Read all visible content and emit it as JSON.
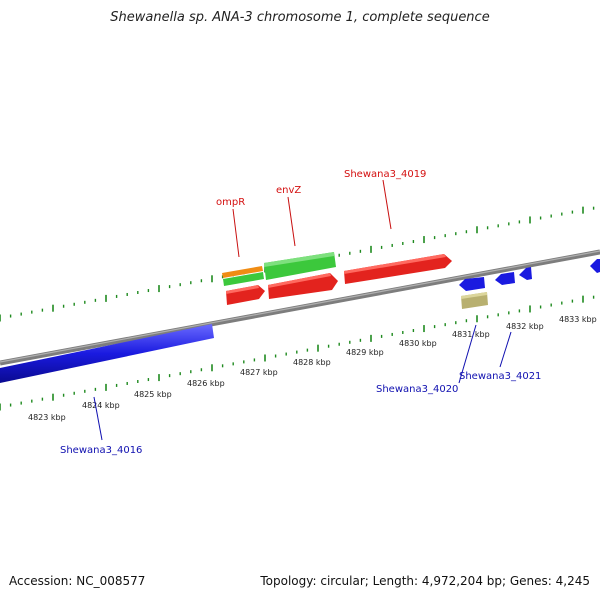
{
  "title": "Shewanella sp. ANA-3 chromosome 1, complete sequence",
  "footer": {
    "accession": "Accession: NC_008577",
    "topology": "Topology: circular; Length: 4,972,204 bp; Genes: 4,245"
  },
  "colors": {
    "backbone": "#8a8a8a",
    "tick": "#1f8a1f",
    "red": "#e3231e",
    "green": "#3cc83c",
    "orange": "#f08c14",
    "blue": "#1a1ae0",
    "khaki": "#b8b070",
    "forward_label": "#d41010",
    "reverse_label": "#1010b0"
  },
  "scale": {
    "ticks": [
      {
        "label": "4823 kbp"
      },
      {
        "label": "4824 kbp"
      },
      {
        "label": "4825 kbp"
      },
      {
        "label": "4826 kbp"
      },
      {
        "label": "4827 kbp"
      },
      {
        "label": "4828 kbp"
      },
      {
        "label": "4829 kbp"
      },
      {
        "label": "4830 kbp"
      },
      {
        "label": "4831 kbp"
      },
      {
        "label": "4832 kbp"
      },
      {
        "label": "4833 kbp"
      }
    ]
  },
  "genes": {
    "forward_labels": [
      {
        "name": "ompR"
      },
      {
        "name": "envZ"
      },
      {
        "name": "Shewana3_4019"
      }
    ],
    "reverse_labels": [
      {
        "name": "Shewana3_4016"
      },
      {
        "name": "Shewana3_4020"
      },
      {
        "name": "Shewana3_4021"
      }
    ]
  }
}
